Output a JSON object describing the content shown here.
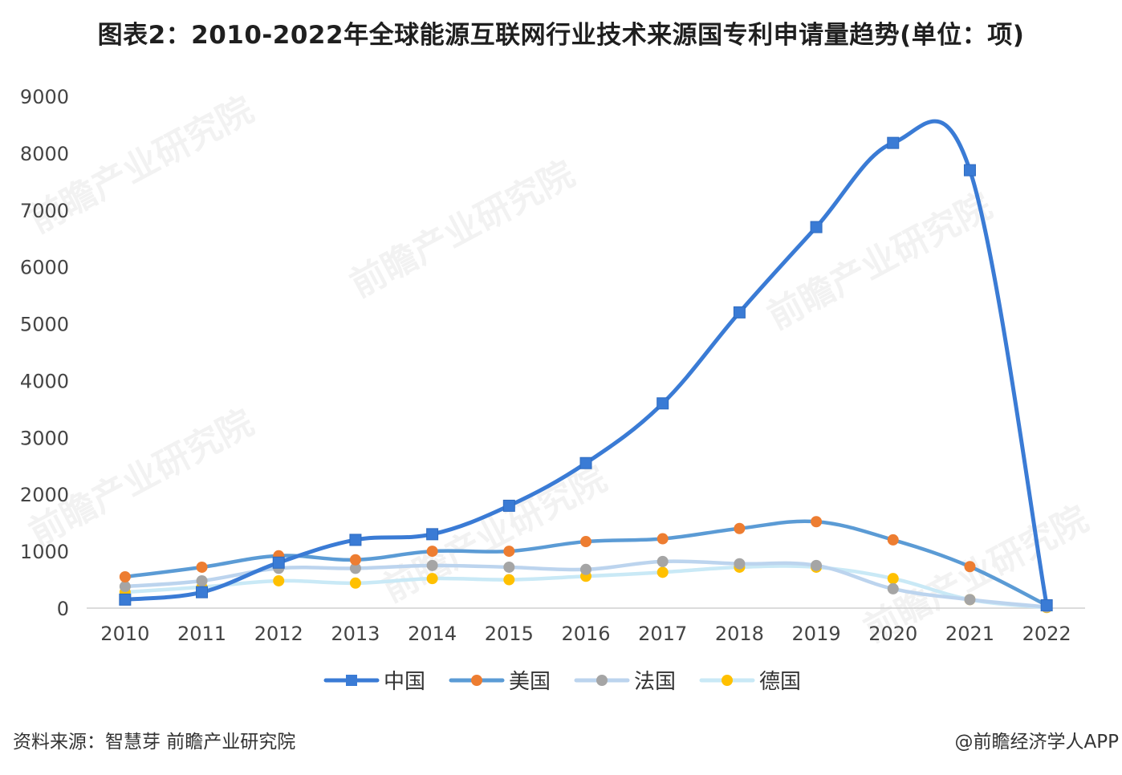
{
  "title": "图表2：2010-2022年全球能源互联网行业技术来源国专利申请量趋势(单位：项)",
  "source": "资料来源：智慧芽 前瞻产业研究院",
  "credit": "@前瞻经济学人APP",
  "watermark": "前瞻产业研究院",
  "colors": {
    "中国": "#3a7bd5",
    "美国": "#5b9bd5",
    "法国": "#bcd4ee",
    "德国": "#c9e9f6"
  },
  "marker_colors": {
    "中国": "#3a7bd5",
    "美国": "#ed7d31",
    "法国": "#a5a5a5",
    "德国": "#ffc000"
  },
  "chart_data": {
    "type": "line",
    "title": "图表2：2010-2022年全球能源互联网行业技术来源国专利申请量趋势(单位：项)",
    "xlabel": "",
    "ylabel": "",
    "categories": [
      "2010",
      "2011",
      "2012",
      "2013",
      "2014",
      "2015",
      "2016",
      "2017",
      "2018",
      "2019",
      "2020",
      "2021",
      "2022"
    ],
    "ylim": [
      0,
      9000
    ],
    "yticks": [
      0,
      1000,
      2000,
      3000,
      4000,
      5000,
      6000,
      7000,
      8000,
      9000
    ],
    "grid": false,
    "legend": "bottom",
    "series": [
      {
        "name": "中国",
        "marker": "square",
        "values": [
          150,
          280,
          800,
          1200,
          1300,
          1800,
          2550,
          3600,
          5200,
          6700,
          8180,
          7700,
          50
        ]
      },
      {
        "name": "美国",
        "marker": "circle",
        "values": [
          550,
          720,
          920,
          850,
          1000,
          1000,
          1170,
          1220,
          1400,
          1520,
          1200,
          730,
          50
        ]
      },
      {
        "name": "法国",
        "marker": "circle",
        "values": [
          380,
          480,
          700,
          700,
          750,
          720,
          680,
          820,
          780,
          750,
          340,
          150,
          20
        ]
      },
      {
        "name": "德国",
        "marker": "circle",
        "values": [
          280,
          370,
          480,
          440,
          520,
          500,
          560,
          630,
          720,
          720,
          520,
          150,
          10
        ]
      }
    ]
  }
}
